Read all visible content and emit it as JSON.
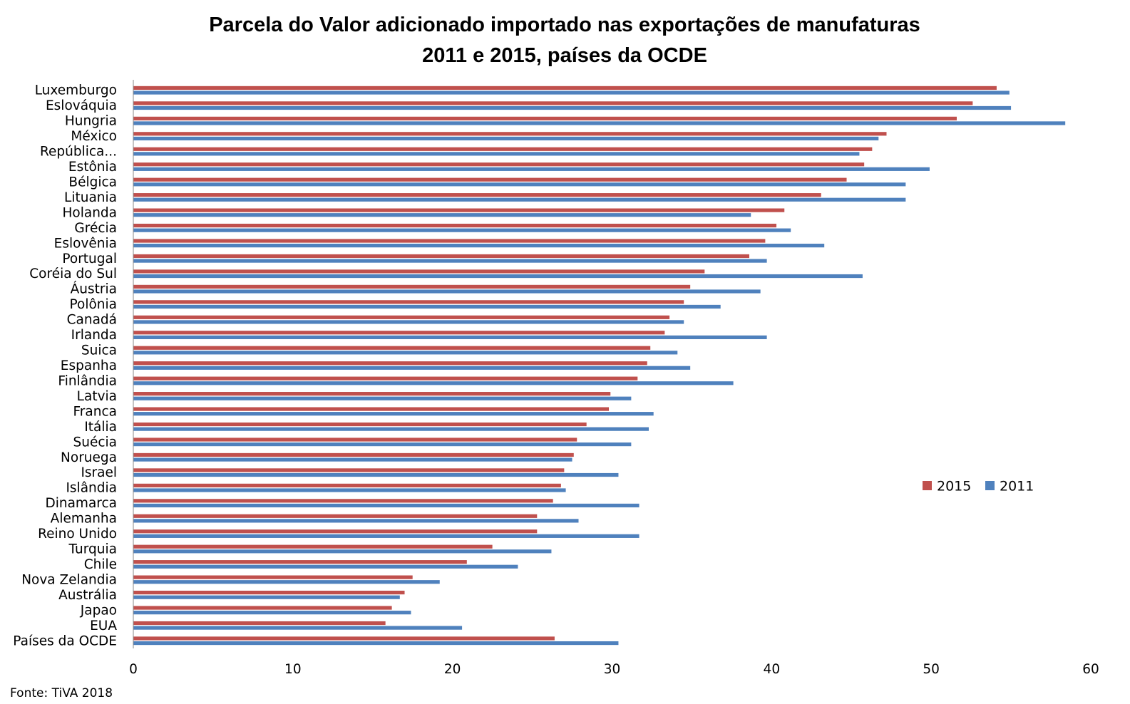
{
  "chart_data": {
    "type": "bar",
    "orientation": "horizontal",
    "title": "Parcela do Valor adicionado importado nas exportações de manufaturas",
    "subtitle": "2011 e 2015, países da OCDE",
    "categories": [
      "Luxemburgo",
      "Eslováquia",
      "Hungria",
      "México",
      "República...",
      "Estônia",
      "Bélgica",
      "Lituania",
      "Holanda",
      "Grécia",
      "Eslovênia",
      "Portugal",
      "Coréia do Sul",
      "Áustria",
      "Polônia",
      "Canadá",
      "Irlanda",
      "Suica",
      "Espanha",
      "Finlândia",
      "Latvia",
      "Franca",
      "Itália",
      "Suécia",
      "Noruega",
      "Israel",
      "Islândia",
      "Dinamarca",
      "Alemanha",
      "Reino Unido",
      "Turquia",
      "Chile",
      "Nova Zelandia",
      "Austrália",
      "Japao",
      "EUA",
      "Países da OCDE"
    ],
    "series": [
      {
        "name": "2015",
        "color": "#c0504d",
        "values": [
          54.1,
          52.6,
          51.6,
          47.2,
          46.3,
          45.8,
          44.7,
          43.1,
          40.8,
          40.3,
          39.6,
          38.6,
          35.8,
          34.9,
          34.5,
          33.6,
          33.3,
          32.4,
          32.2,
          31.6,
          29.9,
          29.8,
          28.4,
          27.8,
          27.6,
          27.0,
          26.8,
          26.3,
          25.3,
          25.3,
          22.5,
          20.9,
          17.5,
          17.0,
          16.2,
          15.8,
          26.4
        ]
      },
      {
        "name": "2011",
        "color": "#4f81bd",
        "values": [
          54.9,
          55.0,
          58.4,
          46.7,
          45.5,
          49.9,
          48.4,
          48.4,
          38.7,
          41.2,
          43.3,
          39.7,
          45.7,
          39.3,
          36.8,
          34.5,
          39.7,
          34.1,
          34.9,
          37.6,
          31.2,
          32.6,
          32.3,
          31.2,
          27.5,
          30.4,
          27.1,
          31.7,
          27.9,
          31.7,
          26.2,
          24.1,
          19.2,
          16.7,
          17.4,
          20.6,
          30.4
        ]
      }
    ],
    "xlim": [
      0,
      60
    ],
    "xticks": [
      0,
      10,
      20,
      30,
      40,
      50,
      60
    ],
    "legend_position": "right",
    "grid": false
  },
  "source_note": "Fonte: TiVA 2018"
}
